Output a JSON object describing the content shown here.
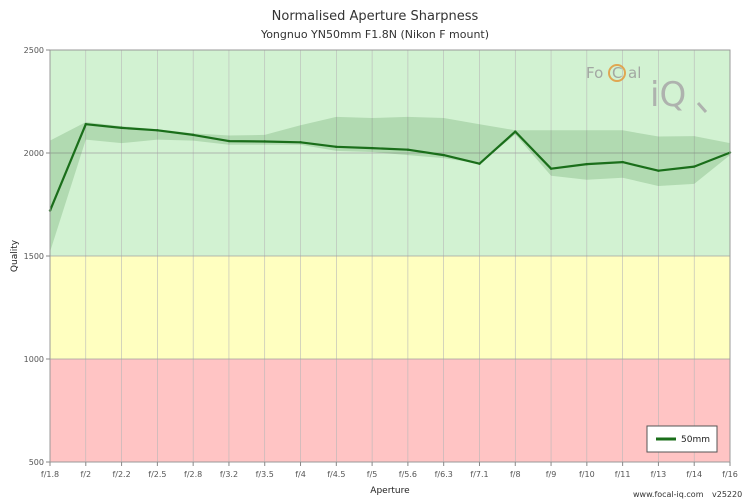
{
  "chart_data": {
    "type": "line",
    "title": "Normalised Aperture Sharpness",
    "subtitle": "Yongnuo YN50mm F1.8N (Nikon F mount)",
    "xlabel": "Aperture",
    "ylabel": "Quality",
    "ylim": [
      500,
      2500
    ],
    "yticks": [
      "500",
      "1000",
      "1500",
      "2000",
      "2500"
    ],
    "categories": [
      "f/1.8",
      "f/2",
      "f/2.2",
      "f/2.5",
      "f/2.8",
      "f/3.2",
      "f/3.5",
      "f/4",
      "f/4.5",
      "f/5",
      "f/5.6",
      "f/6.3",
      "f/7.1",
      "f/8",
      "f/9",
      "f/10",
      "f/11",
      "f/13",
      "f/14",
      "f/16"
    ],
    "series": [
      {
        "name": "50mm",
        "color": "#1a6e1a",
        "values": [
          1720,
          2140,
          2122,
          2110,
          2088,
          2058,
          2056,
          2052,
          2030,
          2024,
          2016,
          1990,
          1948,
          2104,
          1924,
          1946,
          1956,
          1914,
          1934,
          2002
        ],
        "range_upper": [
          2060,
          2150,
          2130,
          2115,
          2095,
          2085,
          2088,
          2135,
          2175,
          2170,
          2175,
          2170,
          2140,
          2110,
          2110,
          2110,
          2110,
          2080,
          2082,
          2048
        ],
        "range_lower": [
          1520,
          2065,
          2048,
          2065,
          2060,
          2040,
          2040,
          2040,
          2010,
          2005,
          1990,
          1975,
          1948,
          2090,
          1890,
          1870,
          1880,
          1840,
          1850,
          1990
        ]
      }
    ],
    "bands": [
      {
        "from": 500,
        "to": 1000,
        "color": "#ffc4c4"
      },
      {
        "from": 1000,
        "to": 1500,
        "color": "#ffffc0"
      },
      {
        "from": 1500,
        "to": 2500,
        "color": "#d2f2d2"
      }
    ],
    "grid": true,
    "legend_position": "bottom-right"
  },
  "logo": {
    "text_left": "Fo",
    "text_c": "C",
    "text_right": "al",
    "text_iq": "iQ"
  },
  "footer": {
    "url": "www.focal-iq.com",
    "version": "v25220"
  }
}
